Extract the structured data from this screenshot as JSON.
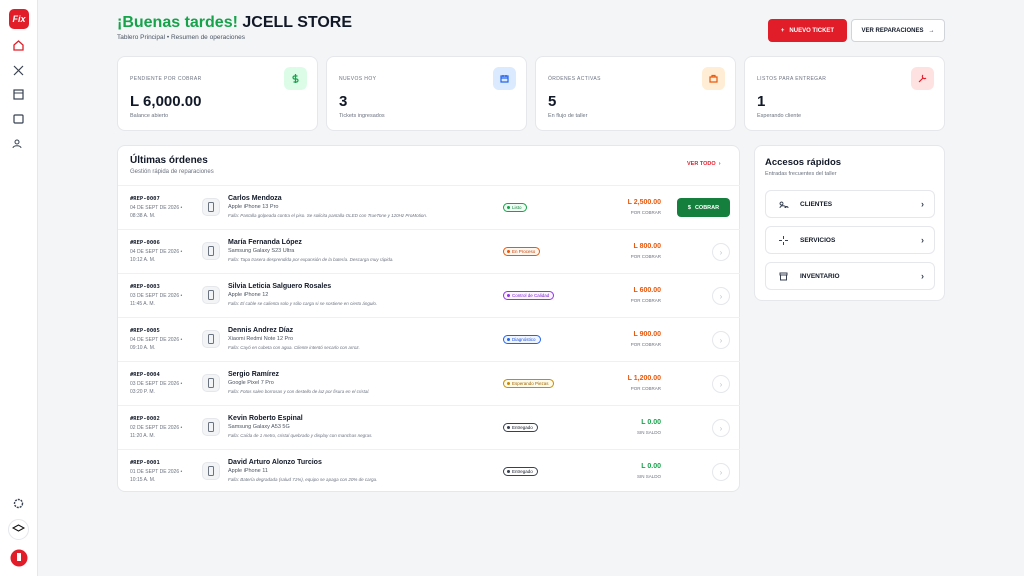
{
  "logo": "Fix",
  "header": {
    "greeting": "¡Buenas tardes!",
    "store": "JCELL STORE",
    "subtitle": "Tablero Principal • Resumen de operaciones",
    "new_ticket": "NUEVO TICKET",
    "view_repairs": "VER REPARACIONES"
  },
  "stats": [
    {
      "label": "PENDIENTE POR COBRAR",
      "value": "L 6,000.00",
      "note": "Balance abierto"
    },
    {
      "label": "NUEVOS HOY",
      "value": "3",
      "note": "Tickets ingresados"
    },
    {
      "label": "ÓRDENES ACTIVAS",
      "value": "5",
      "note": "En flujo de taller"
    },
    {
      "label": "LISTOS PARA ENTREGAR",
      "value": "1",
      "note": "Esperando cliente"
    }
  ],
  "orders": {
    "title": "Últimas órdenes",
    "subtitle": "Gestión rápida de reparaciones",
    "view_all": "VER TODO",
    "rows": [
      {
        "id": "#REP-0007",
        "date": "04 DE SEPT DE 2026 •",
        "time": "08:38 A. M.",
        "customer": "Carlos Mendoza",
        "device": "Apple iPhone 13 Pro",
        "issue": "Falla: Pantalla golpeada contra el piso. Se solicita pantalla OLED con TrueTone y 120Hz ProMotion.",
        "status": "Listo",
        "amount": "L 2,500.00",
        "balance": "POR COBRAR",
        "action": "COBRAR"
      },
      {
        "id": "#REP-0006",
        "date": "04 DE SEPT DE 2026 •",
        "time": "10:12 A. M.",
        "customer": "María Fernanda López",
        "device": "Samsung Galaxy S23 Ultra",
        "issue": "Falla: Tapa trasera desprendida por expansión de la batería. Descarga muy rápida.",
        "status": "En Proceso",
        "amount": "L 800.00",
        "balance": "POR COBRAR"
      },
      {
        "id": "#REP-0003",
        "date": "03 DE SEPT DE 2026 •",
        "time": "11:45 A. M.",
        "customer": "Silvia Leticia Salguero Rosales",
        "device": "Apple iPhone 12",
        "issue": "Falla: El cable se calienta solo y sólo carga si se sostiene en cierto ángulo.",
        "status": "Control de Calidad",
        "amount": "L 600.00",
        "balance": "POR COBRAR"
      },
      {
        "id": "#REP-0005",
        "date": "04 DE SEPT DE 2026 •",
        "time": "09:10 A. M.",
        "customer": "Dennis Andrez Díaz",
        "device": "Xiaomi Redmi Note 12 Pro",
        "issue": "Falla: Cayó en cubeta con agua. Cliente intentó secarlo con arroz.",
        "status": "Diagnóstico",
        "amount": "L 900.00",
        "balance": "POR COBRAR"
      },
      {
        "id": "#REP-0004",
        "date": "03 DE SEPT DE 2026 •",
        "time": "03:20 P. M.",
        "customer": "Sergio Ramírez",
        "device": "Google Pixel 7 Pro",
        "issue": "Falla: Fotos salen borrosas y con destello de luz por fisura en el cristal.",
        "status": "Esperando Piezas",
        "amount": "L 1,200.00",
        "balance": "POR COBRAR"
      },
      {
        "id": "#REP-0002",
        "date": "02 DE SEPT DE 2026 •",
        "time": "11:20 A. M.",
        "customer": "Kevin Roberto Espinal",
        "device": "Samsung Galaxy A53 5G",
        "issue": "Falla: Caída de 1 metro, cristal quebrado y display con manchas negras.",
        "status": "Entregado",
        "amount": "L 0.00",
        "balance": "SIN SALDO"
      },
      {
        "id": "#REP-0001",
        "date": "01 DE SEPT DE 2026 •",
        "time": "10:15 A. M.",
        "customer": "David Arturo Alonzo Turcios",
        "device": "Apple iPhone 11",
        "issue": "Falla: Batería degradada (salud 71%), equipo se apaga con 20% de carga.",
        "status": "Entregado",
        "amount": "L 0.00",
        "balance": "SIN SALDO"
      }
    ]
  },
  "quick": {
    "title": "Accesos rápidos",
    "subtitle": "Entradas frecuentes del taller",
    "items": [
      "CLIENTES",
      "SERVICIOS",
      "INVENTARIO"
    ]
  }
}
